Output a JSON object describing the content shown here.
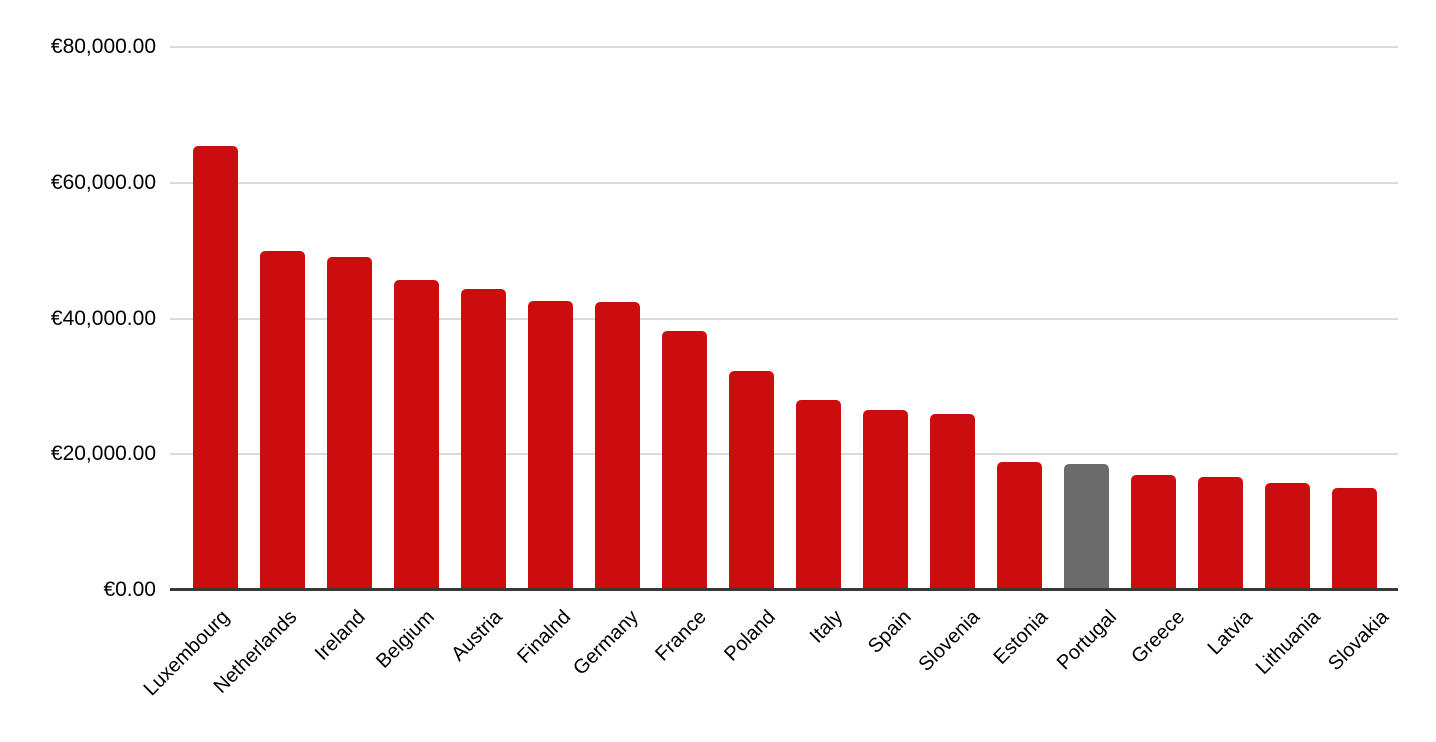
{
  "chart_data": {
    "type": "bar",
    "title": "",
    "xlabel": "",
    "ylabel": "",
    "currency": "EUR",
    "categories": [
      "Luxembourg",
      "Netherlands",
      "Ireland",
      "Belgium",
      "Austria",
      "Finalnd",
      "Germany",
      "France",
      "Poland",
      "Italy",
      "Spain",
      "Slovenia",
      "Estonia",
      "Portugal",
      "Greece",
      "Latvia",
      "Lithuania",
      "Slovakia"
    ],
    "values": [
      65400,
      50000,
      49100,
      45700,
      44400,
      42600,
      42400,
      38100,
      32300,
      28000,
      26500,
      26000,
      18900,
      18500,
      16900,
      16700,
      15800,
      15100
    ],
    "bar_color": "#cc0d0d",
    "highlight_country": "Portugal",
    "highlight_color": "#6b6b6b",
    "ylim": [
      0,
      80000
    ],
    "grid": true,
    "legend": "none",
    "yticks": [
      {
        "value": 80000,
        "label": "€80,000.00"
      },
      {
        "value": 60000,
        "label": "€60,000.00"
      },
      {
        "value": 40000,
        "label": "€40,000.00"
      },
      {
        "value": 20000,
        "label": "€20,000.00"
      },
      {
        "value": 0,
        "label": "€0.00"
      }
    ],
    "colors": {
      "gridline": "#d9d9d9",
      "axis_line": "#383838",
      "text": "#000000",
      "background": "#ffffff"
    }
  }
}
